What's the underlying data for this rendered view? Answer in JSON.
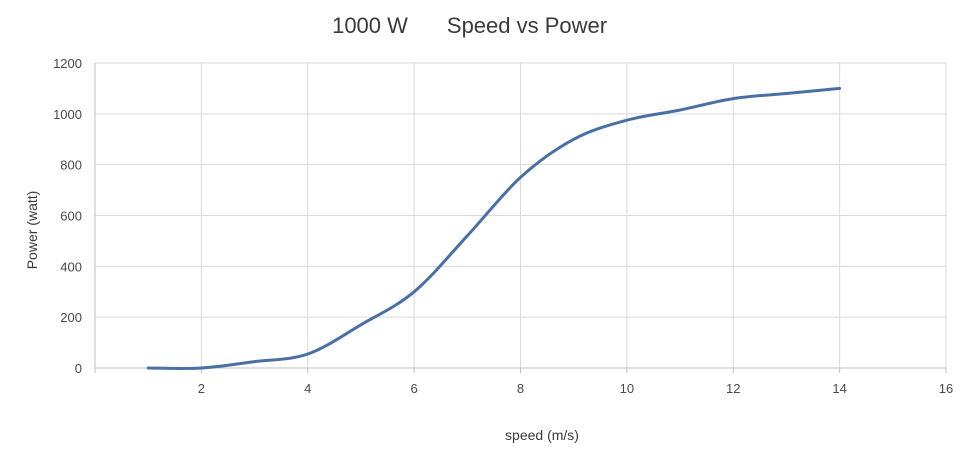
{
  "chart_data": {
    "type": "line",
    "title_prefix": "1000 W",
    "title": "Speed vs Power",
    "xlabel": "speed (m/s)",
    "ylabel": "Power (watt)",
    "xlim": [
      0,
      16
    ],
    "ylim": [
      0,
      1200
    ],
    "x_ticks": [
      0,
      2,
      4,
      6,
      8,
      10,
      12,
      14,
      16
    ],
    "y_ticks": [
      0,
      200,
      400,
      600,
      800,
      1000,
      1200
    ],
    "x_tick_labels": [
      "",
      "2",
      "4",
      "6",
      "8",
      "10",
      "12",
      "14",
      "16"
    ],
    "y_tick_labels": [
      "0",
      "200",
      "400",
      "600",
      "800",
      "1000",
      "1200"
    ],
    "grid": true,
    "legend": "none",
    "series": [
      {
        "name": "Power",
        "color": "#4a6fa5",
        "x": [
          1,
          2,
          3,
          4,
          5,
          6,
          7,
          8,
          9,
          10,
          11,
          12,
          13,
          14
        ],
        "y": [
          0,
          0,
          25,
          55,
          170,
          300,
          520,
          750,
          900,
          975,
          1015,
          1060,
          1080,
          1100
        ]
      }
    ]
  }
}
